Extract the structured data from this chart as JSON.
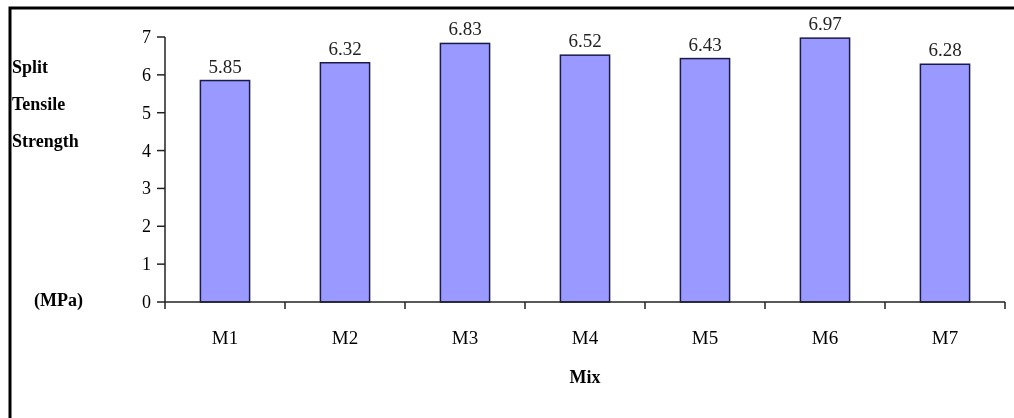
{
  "chart_data": {
    "type": "bar",
    "xlabel": "Mix",
    "ylabel": "Split Tensile Strength (MPa)",
    "categories": [
      "M1",
      "M2",
      "M3",
      "M4",
      "M5",
      "M6",
      "M7"
    ],
    "values": [
      5.85,
      6.32,
      6.83,
      6.52,
      6.43,
      6.97,
      6.28
    ],
    "color": "#9999ff",
    "ylim": [
      0,
      7
    ],
    "yticks": [
      0,
      1,
      2,
      3,
      4,
      5,
      6,
      7
    ],
    "data_labels": true,
    "grid": false
  }
}
